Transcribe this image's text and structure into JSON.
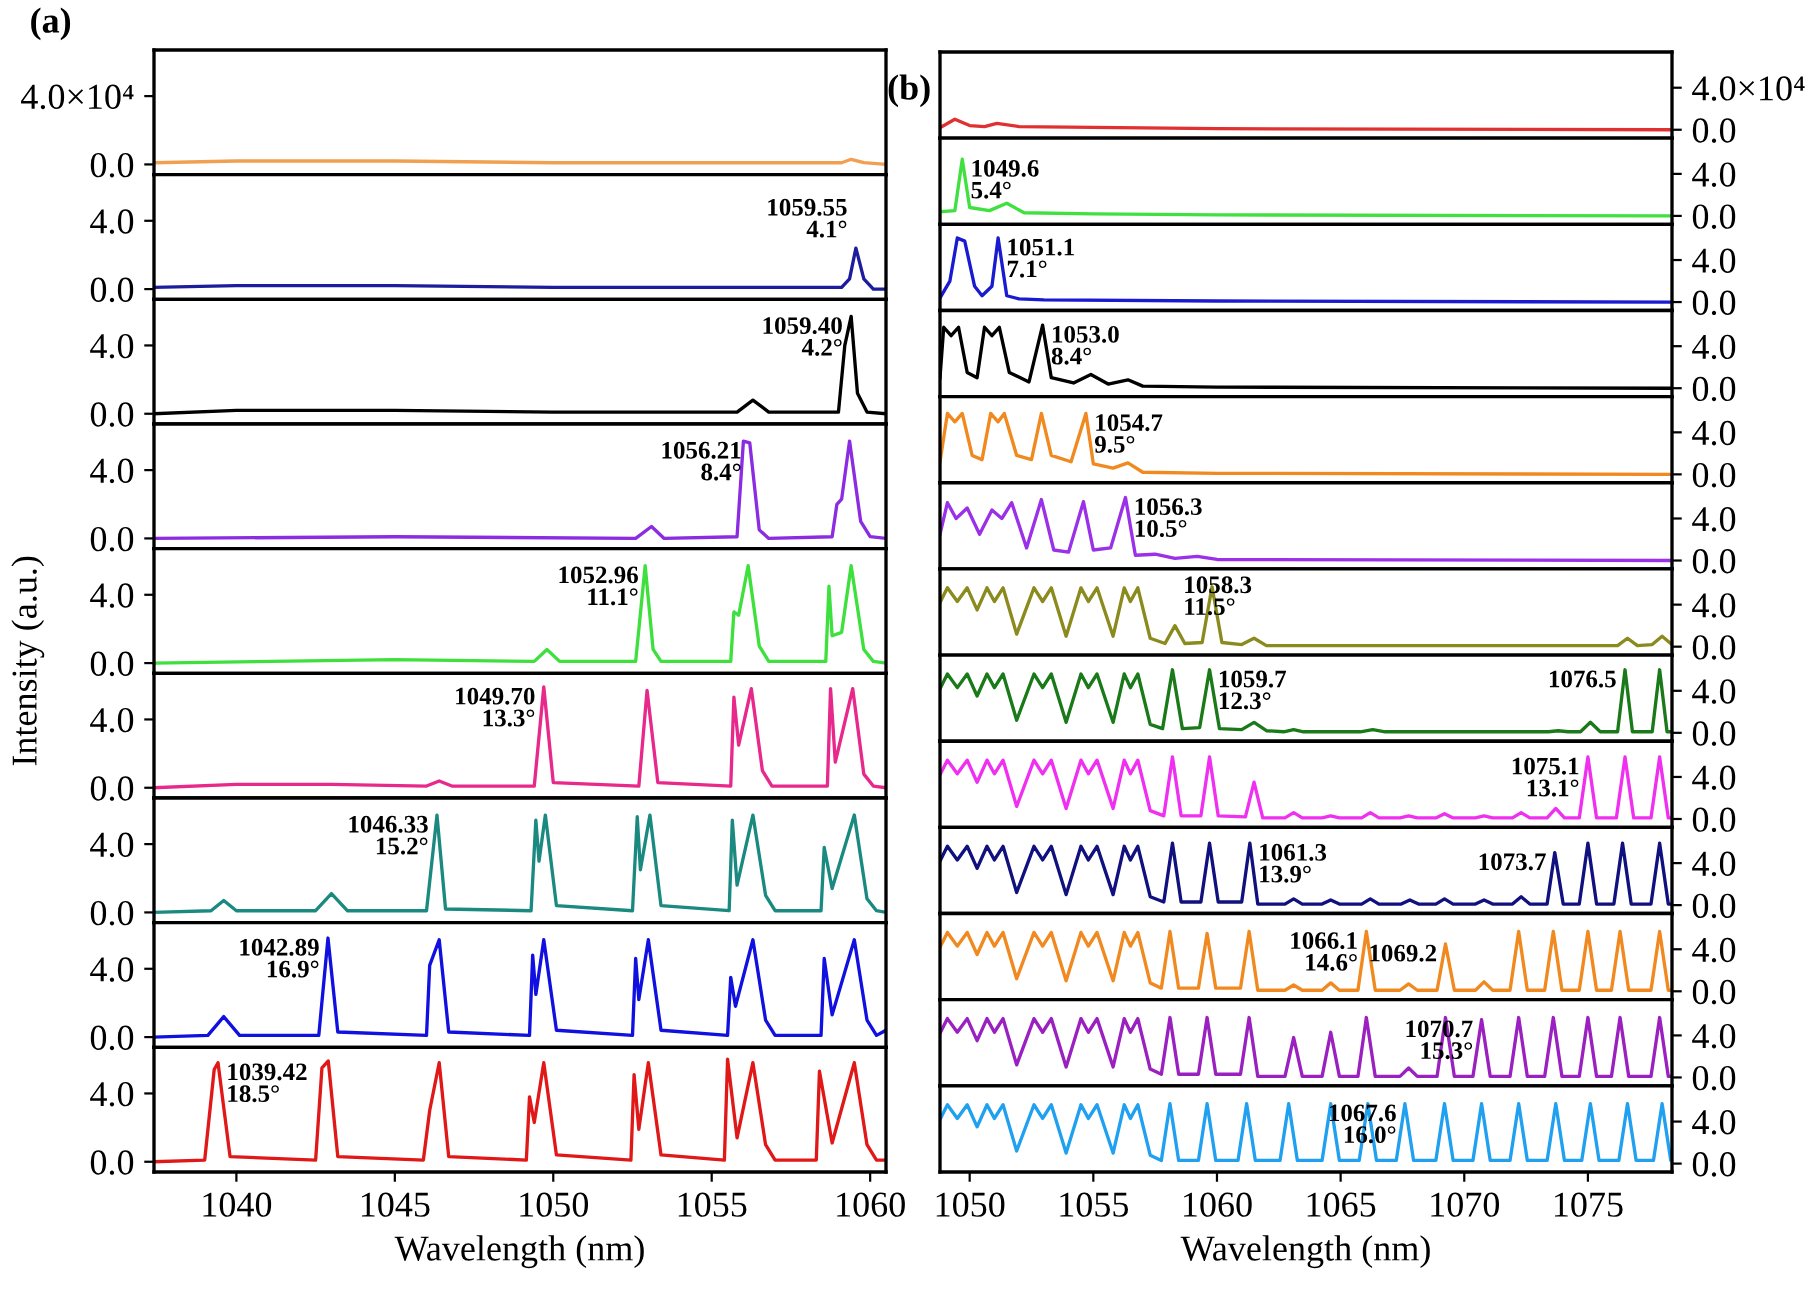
{
  "chart_data": [
    {
      "type": "line",
      "title": "(a)",
      "series": [
        {
          "color": "#f0a050",
          "x": [
            1037.4,
            1040,
            1045,
            1050,
            1055,
            1059.1,
            1059.4,
            1059.8,
            1060.5
          ],
          "values": [
            1000,
            2000,
            2000,
            1000,
            1000,
            1000,
            3000,
            1000,
            0
          ]
        }
      ],
      "xlim": [
        1037.4,
        1060.5
      ],
      "ylim": [
        -6000,
        67000
      ],
      "yticks": [
        {
          "value": 0,
          "label": "0.0"
        },
        {
          "value": 40000,
          "label": "4.0×10⁴"
        }
      ],
      "tick_labels": "y"
    },
    {
      "type": "line",
      "series": [
        {
          "color": "#1c1c9c",
          "x": [
            1037.4,
            1040,
            1045,
            1050,
            1055,
            1059.1,
            1059.35,
            1059.55,
            1059.8,
            1060.1,
            1060.5
          ],
          "values": [
            0.1,
            0.2,
            0.2,
            0.1,
            0.1,
            0.1,
            0.6,
            2.4,
            0.6,
            0.0,
            0.0
          ]
        }
      ],
      "xlim": [
        1037.4,
        1060.5
      ],
      "ylim": [
        -0.6,
        6.7
      ],
      "yticks": [
        {
          "value": 0,
          "label": "0.0"
        },
        {
          "value": 4,
          "label": "4.0"
        }
      ],
      "tick_labels": "y",
      "annotations": [
        {
          "text": "1059.55\n4.1°",
          "x": 1059.55,
          "y": 2.4
        }
      ]
    },
    {
      "type": "line",
      "series": [
        {
          "color": "#000000",
          "x": [
            1037.4,
            1040,
            1045,
            1050,
            1055.8,
            1056.3,
            1056.8,
            1059.0,
            1059.2,
            1059.4,
            1059.6,
            1059.9,
            1060.5
          ],
          "values": [
            0.0,
            0.2,
            0.2,
            0.1,
            0.1,
            0.8,
            0.1,
            0.1,
            4.0,
            5.7,
            1.2,
            0.1,
            0.0
          ]
        }
      ],
      "xlim": [
        1037.4,
        1060.5
      ],
      "ylim": [
        -0.6,
        6.7
      ],
      "yticks": [
        {
          "value": 0,
          "label": "0.0"
        },
        {
          "value": 4,
          "label": "4.0"
        }
      ],
      "tick_labels": "y",
      "annotations": [
        {
          "text": "1059.40\n4.2°",
          "x": 1059.4,
          "y": 5.7
        }
      ]
    },
    {
      "type": "line",
      "series": [
        {
          "color": "#8b2be2",
          "x": [
            1037.4,
            1045,
            1052.6,
            1053.1,
            1053.5,
            1055.8,
            1056.0,
            1056.2,
            1056.5,
            1056.8,
            1058.8,
            1058.95,
            1059.1,
            1059.35,
            1059.7,
            1060.0,
            1060.5
          ],
          "values": [
            0.0,
            0.1,
            0.0,
            0.7,
            0.0,
            0.1,
            5.7,
            5.6,
            0.5,
            0.0,
            0.1,
            2.0,
            2.3,
            5.7,
            1.0,
            0.1,
            0.0
          ]
        }
      ],
      "xlim": [
        1037.4,
        1060.5
      ],
      "ylim": [
        -0.6,
        6.7
      ],
      "yticks": [
        {
          "value": 0,
          "label": "0.0"
        },
        {
          "value": 4,
          "label": "4.0"
        }
      ],
      "tick_labels": "y",
      "annotations": [
        {
          "text": "1056.21\n8.4°",
          "x": 1056.21,
          "y": 5.7
        }
      ]
    },
    {
      "type": "line",
      "ylabel": "Intensity (a.u.)",
      "series": [
        {
          "color": "#3ee03e",
          "x": [
            1037.4,
            1045,
            1049.4,
            1049.8,
            1050.2,
            1052.6,
            1052.9,
            1053.15,
            1053.4,
            1055.6,
            1055.7,
            1055.85,
            1056.15,
            1056.5,
            1056.8,
            1058.6,
            1058.7,
            1058.8,
            1059.1,
            1059.4,
            1059.8,
            1060.1,
            1060.5
          ],
          "values": [
            0.0,
            0.2,
            0.1,
            0.8,
            0.1,
            0.1,
            5.7,
            0.8,
            0.1,
            0.1,
            3.0,
            2.8,
            5.7,
            1.0,
            0.1,
            0.1,
            4.5,
            1.6,
            1.8,
            5.7,
            0.8,
            0.1,
            0.0
          ]
        }
      ],
      "xlim": [
        1037.4,
        1060.5
      ],
      "ylim": [
        -0.6,
        6.7
      ],
      "yticks": [
        {
          "value": 0,
          "label": "0.0"
        },
        {
          "value": 4,
          "label": "4.0"
        }
      ],
      "tick_labels": "y",
      "annotations": [
        {
          "text": "1052.96\n11.1°",
          "x": 1052.96,
          "y": 5.7
        }
      ]
    },
    {
      "type": "line",
      "series": [
        {
          "color": "#e8288a",
          "x": [
            1037.4,
            1040,
            1043,
            1046.0,
            1046.4,
            1046.8,
            1049.4,
            1049.7,
            1050.0,
            1052.7,
            1052.96,
            1053.3,
            1055.6,
            1055.7,
            1055.85,
            1056.25,
            1056.6,
            1056.9,
            1058.65,
            1058.75,
            1058.9,
            1059.45,
            1059.8,
            1060.1,
            1060.5
          ],
          "values": [
            0.0,
            0.2,
            0.2,
            0.1,
            0.4,
            0.1,
            0.1,
            5.9,
            0.3,
            0.1,
            5.7,
            0.3,
            0.1,
            5.3,
            2.5,
            5.8,
            1.0,
            0.1,
            0.1,
            5.8,
            1.5,
            5.8,
            0.8,
            0.1,
            0.0
          ]
        }
      ],
      "xlim": [
        1037.4,
        1060.5
      ],
      "ylim": [
        -0.6,
        6.7
      ],
      "yticks": [
        {
          "value": 0,
          "label": "0.0"
        },
        {
          "value": 4,
          "label": "4.0"
        }
      ],
      "tick_labels": "y",
      "annotations": [
        {
          "text": "1049.70\n13.3°",
          "x": 1049.7,
          "y": 5.9
        }
      ]
    },
    {
      "type": "line",
      "series": [
        {
          "color": "#1a8a80",
          "x": [
            1037.4,
            1039.2,
            1039.6,
            1040.0,
            1042.5,
            1043.0,
            1043.5,
            1046.0,
            1046.33,
            1046.6,
            1049.3,
            1049.45,
            1049.55,
            1049.75,
            1050.1,
            1052.5,
            1052.65,
            1052.75,
            1053.05,
            1053.4,
            1055.55,
            1055.65,
            1055.8,
            1056.3,
            1056.7,
            1057.0,
            1058.45,
            1058.55,
            1058.8,
            1059.5,
            1059.9,
            1060.2,
            1060.5
          ],
          "values": [
            0.0,
            0.1,
            0.7,
            0.1,
            0.1,
            1.1,
            0.1,
            0.1,
            5.7,
            0.2,
            0.1,
            5.4,
            3.0,
            5.7,
            0.4,
            0.1,
            5.6,
            2.5,
            5.7,
            0.4,
            0.1,
            5.4,
            1.6,
            5.7,
            1.0,
            0.1,
            0.1,
            3.8,
            1.4,
            5.7,
            0.8,
            0.1,
            0.0
          ]
        }
      ],
      "xlim": [
        1037.4,
        1060.5
      ],
      "ylim": [
        -0.6,
        6.7
      ],
      "yticks": [
        {
          "value": 0,
          "label": "0.0"
        },
        {
          "value": 4,
          "label": "4.0"
        }
      ],
      "tick_labels": "y",
      "annotations": [
        {
          "text": "1046.33\n15.2°",
          "x": 1046.33,
          "y": 5.7
        }
      ]
    },
    {
      "type": "line",
      "series": [
        {
          "color": "#1010e0",
          "x": [
            1037.4,
            1039.1,
            1039.6,
            1040.1,
            1042.6,
            1042.89,
            1043.2,
            1046.0,
            1046.1,
            1046.4,
            1046.7,
            1049.25,
            1049.35,
            1049.45,
            1049.7,
            1050.1,
            1052.5,
            1052.6,
            1052.7,
            1053.0,
            1053.4,
            1055.5,
            1055.6,
            1055.75,
            1056.3,
            1056.7,
            1057.0,
            1058.45,
            1058.55,
            1058.8,
            1059.5,
            1059.9,
            1060.2,
            1060.5
          ],
          "values": [
            0.0,
            0.1,
            1.2,
            0.1,
            0.1,
            5.8,
            0.3,
            0.1,
            4.2,
            5.7,
            0.3,
            0.1,
            4.8,
            2.5,
            5.7,
            0.4,
            0.1,
            4.6,
            2.2,
            5.7,
            0.4,
            0.1,
            3.5,
            1.8,
            5.7,
            1.0,
            0.1,
            0.1,
            4.6,
            1.3,
            5.7,
            1.0,
            0.1,
            0.4
          ]
        }
      ],
      "xlim": [
        1037.4,
        1060.5
      ],
      "ylim": [
        -0.6,
        6.7
      ],
      "yticks": [
        {
          "value": 0,
          "label": "0.0"
        },
        {
          "value": 4,
          "label": "4.0"
        }
      ],
      "tick_labels": "y",
      "annotations": [
        {
          "text": "1042.89\n16.9°",
          "x": 1042.89,
          "y": 5.8
        }
      ]
    },
    {
      "type": "line",
      "xlabel": "Wavelength (nm)",
      "series": [
        {
          "color": "#e01818",
          "x": [
            1037.4,
            1039.0,
            1039.3,
            1039.42,
            1039.8,
            1042.5,
            1042.7,
            1042.9,
            1043.2,
            1045.9,
            1046.1,
            1046.4,
            1046.7,
            1049.15,
            1049.25,
            1049.4,
            1049.7,
            1050.1,
            1052.45,
            1052.55,
            1052.7,
            1053.0,
            1053.4,
            1055.4,
            1055.5,
            1055.8,
            1056.3,
            1056.7,
            1057.0,
            1058.3,
            1058.4,
            1058.8,
            1059.5,
            1059.9,
            1060.2,
            1060.5
          ],
          "values": [
            0.0,
            0.1,
            5.4,
            5.8,
            0.3,
            0.1,
            5.5,
            5.9,
            0.3,
            0.1,
            3.0,
            5.8,
            0.3,
            0.1,
            3.8,
            2.3,
            5.8,
            0.4,
            0.1,
            5.1,
            1.9,
            5.8,
            0.4,
            0.1,
            6.0,
            1.4,
            5.8,
            1.0,
            0.1,
            0.1,
            5.3,
            1.1,
            5.8,
            1.0,
            0.1,
            0.1
          ]
        }
      ],
      "xlim": [
        1037.4,
        1060.5
      ],
      "xticks": [
        1040,
        1045,
        1050,
        1055,
        1060
      ],
      "ylim": [
        -0.6,
        6.7
      ],
      "yticks": [
        {
          "value": 0,
          "label": "0.0"
        },
        {
          "value": 4,
          "label": "4.0"
        }
      ],
      "annotations": [
        {
          "text": "1039.42\n18.5°",
          "x": 1039.42,
          "y": 5.8
        }
      ]
    },
    {
      "type": "line",
      "title": "(b)",
      "series": [
        {
          "color": "#e03030",
          "x": [
            1048.8,
            1049.4,
            1050.0,
            1050.6,
            1051.1,
            1052.0,
            1056,
            1060,
            1078.4
          ],
          "values": [
            2000,
            10000,
            4000,
            3000,
            6000,
            3000,
            2000,
            1000,
            0
          ]
        }
      ],
      "xlim": [
        1048.8,
        1078.4
      ],
      "ylim": [
        -8000,
        74000
      ],
      "yticks": [
        {
          "value": 0,
          "label": "0.0"
        },
        {
          "value": 40000,
          "label": "4.0×10⁴"
        }
      ],
      "tick_labels": "y"
    },
    {
      "type": "line",
      "series": [
        {
          "color": "#40e040",
          "x": [
            1048.8,
            1049.4,
            1049.7,
            1050.0,
            1050.8,
            1051.5,
            1052.2,
            1055,
            1060,
            1078.4
          ],
          "values": [
            0.4,
            0.5,
            5.4,
            0.8,
            0.5,
            1.2,
            0.3,
            0.2,
            0.1,
            0.0
          ]
        }
      ],
      "xlim": [
        1048.8,
        1078.4
      ],
      "ylim": [
        -0.8,
        7.4
      ],
      "yticks": [
        {
          "value": 0,
          "label": "0.0"
        },
        {
          "value": 4,
          "label": "4.0"
        }
      ],
      "tick_labels": "y",
      "annotations": [
        {
          "text": "1049.6\n5.4°",
          "x": 1049.7,
          "y": 5.4
        }
      ]
    },
    {
      "type": "line",
      "series": [
        {
          "color": "#1a1ad0",
          "x": [
            1048.8,
            1049.2,
            1049.5,
            1049.8,
            1050.2,
            1050.5,
            1050.9,
            1051.15,
            1051.5,
            1052.0,
            1053,
            1060,
            1078.4
          ],
          "values": [
            0.4,
            2.0,
            6.1,
            5.8,
            1.5,
            0.6,
            1.5,
            6.1,
            0.6,
            0.3,
            0.2,
            0.1,
            0.0
          ]
        }
      ],
      "xlim": [
        1048.8,
        1078.4
      ],
      "ylim": [
        -0.8,
        7.4
      ],
      "yticks": [
        {
          "value": 0,
          "label": "0.0"
        },
        {
          "value": 4,
          "label": "4.0"
        }
      ],
      "tick_labels": "y",
      "annotations": [
        {
          "text": "1051.1\n7.1°",
          "x": 1051.15,
          "y": 6.1
        }
      ]
    },
    {
      "type": "line",
      "series": [
        {
          "color": "#000000",
          "x": [
            1048.8,
            1048.95,
            1049.25,
            1049.55,
            1049.9,
            1050.3,
            1050.6,
            1050.9,
            1051.2,
            1051.6,
            1052.4,
            1052.95,
            1053.3,
            1054.2,
            1054.9,
            1055.6,
            1056.4,
            1057,
            1060,
            1078.4
          ],
          "values": [
            1.0,
            5.8,
            5.0,
            5.8,
            1.5,
            1.0,
            5.8,
            5.0,
            5.8,
            1.5,
            0.6,
            6.0,
            1.0,
            0.5,
            1.3,
            0.4,
            0.8,
            0.2,
            0.1,
            0.0
          ]
        }
      ],
      "xlim": [
        1048.8,
        1078.4
      ],
      "ylim": [
        -0.8,
        7.4
      ],
      "yticks": [
        {
          "value": 0,
          "label": "0.0"
        },
        {
          "value": 4,
          "label": "4.0"
        }
      ],
      "tick_labels": "y",
      "annotations": [
        {
          "text": "1053.0\n8.4°",
          "x": 1052.95,
          "y": 6.0
        }
      ]
    },
    {
      "type": "line",
      "series": [
        {
          "color": "#f08a20",
          "x": [
            1048.8,
            1049.1,
            1049.4,
            1049.7,
            1050.1,
            1050.5,
            1050.85,
            1051.15,
            1051.4,
            1051.9,
            1052.5,
            1052.9,
            1053.3,
            1054.1,
            1054.7,
            1055.0,
            1055.8,
            1056.4,
            1057.0,
            1060,
            1078.4
          ],
          "values": [
            1.2,
            5.8,
            5.0,
            5.8,
            1.8,
            1.4,
            5.8,
            5.0,
            5.8,
            1.8,
            1.4,
            5.8,
            1.8,
            1.2,
            5.8,
            1.0,
            0.6,
            1.1,
            0.2,
            0.1,
            0.0
          ]
        }
      ],
      "xlim": [
        1048.8,
        1078.4
      ],
      "ylim": [
        -0.8,
        7.4
      ],
      "yticks": [
        {
          "value": 0,
          "label": "0.0"
        },
        {
          "value": 4,
          "label": "4.0"
        }
      ],
      "tick_labels": "y",
      "annotations": [
        {
          "text": "1054.7\n9.5°",
          "x": 1054.7,
          "y": 5.8
        }
      ]
    },
    {
      "type": "line",
      "series": [
        {
          "color": "#9a30e8",
          "x": [
            1048.8,
            1049.1,
            1049.45,
            1049.9,
            1050.4,
            1050.9,
            1051.3,
            1051.7,
            1052.3,
            1052.9,
            1053.4,
            1054.0,
            1054.6,
            1055.0,
            1055.7,
            1056.3,
            1056.7,
            1057.5,
            1058.3,
            1059.2,
            1060,
            1078.4
          ],
          "values": [
            2.5,
            5.5,
            4.0,
            5.0,
            2.5,
            4.8,
            4.0,
            5.5,
            1.2,
            5.8,
            1.0,
            0.8,
            5.6,
            1.0,
            1.2,
            6.0,
            0.5,
            0.6,
            0.2,
            0.4,
            0.1,
            0.0
          ]
        }
      ],
      "xlim": [
        1048.8,
        1078.4
      ],
      "ylim": [
        -0.8,
        7.4
      ],
      "yticks": [
        {
          "value": 0,
          "label": "0.0"
        },
        {
          "value": 4,
          "label": "4.0"
        }
      ],
      "tick_labels": "y",
      "annotations": [
        {
          "text": "1056.3\n10.5°",
          "x": 1056.3,
          "y": 6.0
        }
      ]
    },
    {
      "type": "line",
      "series": [
        {
          "color": "#8a8a1e",
          "x": [
            1048.8,
            1049.1,
            1049.5,
            1049.9,
            1050.3,
            1050.7,
            1051.0,
            1051.35,
            1051.9,
            1052.6,
            1052.95,
            1053.3,
            1053.9,
            1054.5,
            1054.8,
            1055.15,
            1055.8,
            1056.25,
            1056.5,
            1056.8,
            1057.3,
            1057.9,
            1058.3,
            1058.7,
            1059.4,
            1059.8,
            1060.2,
            1061.0,
            1061.5,
            1062.0,
            1064,
            1070,
            1076.2,
            1076.6,
            1077.0,
            1077.6,
            1078.0,
            1078.4
          ],
          "values": [
            4.2,
            5.6,
            4.3,
            5.6,
            3.5,
            5.6,
            4.3,
            5.6,
            1.2,
            5.6,
            4.3,
            5.6,
            1.0,
            5.6,
            4.3,
            5.6,
            1.0,
            5.6,
            4.3,
            5.6,
            0.8,
            0.3,
            2.0,
            0.3,
            0.4,
            5.7,
            0.4,
            0.2,
            0.8,
            0.1,
            0.1,
            0.1,
            0.1,
            0.8,
            0.1,
            0.2,
            1.0,
            0.2
          ]
        }
      ],
      "xlim": [
        1048.8,
        1078.4
      ],
      "ylim": [
        -0.8,
        7.4
      ],
      "yticks": [
        {
          "value": 0,
          "label": "0.0"
        },
        {
          "value": 4,
          "label": "4.0"
        }
      ],
      "tick_labels": "y",
      "annotations": [
        {
          "text": "1058.3\n11.5°",
          "x": 1058.3,
          "y": 2.0
        }
      ]
    },
    {
      "type": "line",
      "series": [
        {
          "color": "#1a7a1a",
          "x": [
            1048.8,
            1049.1,
            1049.5,
            1049.9,
            1050.3,
            1050.7,
            1051.0,
            1051.35,
            1051.9,
            1052.6,
            1052.95,
            1053.3,
            1053.9,
            1054.5,
            1054.8,
            1055.15,
            1055.8,
            1056.25,
            1056.5,
            1056.8,
            1057.3,
            1057.8,
            1058.2,
            1058.6,
            1059.3,
            1059.7,
            1060.1,
            1061.0,
            1061.5,
            1062.0,
            1062.7,
            1063.1,
            1063.5,
            1065.8,
            1066.3,
            1066.8,
            1073.4,
            1073.8,
            1074.2,
            1074.7,
            1075.1,
            1075.5,
            1076.2,
            1076.5,
            1076.8,
            1077.6,
            1077.9,
            1078.2,
            1078.4
          ],
          "values": [
            4.2,
            5.6,
            4.3,
            5.6,
            3.5,
            5.6,
            4.3,
            5.6,
            1.2,
            5.6,
            4.3,
            5.6,
            1.0,
            5.6,
            4.3,
            5.6,
            1.0,
            5.6,
            4.3,
            5.6,
            0.8,
            0.4,
            6.0,
            0.4,
            0.5,
            6.0,
            0.4,
            0.3,
            1.0,
            0.2,
            0.1,
            0.3,
            0.1,
            0.1,
            0.3,
            0.1,
            0.1,
            0.2,
            0.1,
            0.1,
            1.0,
            0.1,
            0.1,
            6.0,
            0.1,
            0.1,
            6.0,
            0.1,
            0.1
          ]
        }
      ],
      "xlim": [
        1048.8,
        1078.4
      ],
      "ylim": [
        -0.8,
        7.4
      ],
      "yticks": [
        {
          "value": 0,
          "label": "0.0"
        },
        {
          "value": 4,
          "label": "4.0"
        }
      ],
      "tick_labels": "y",
      "annotations": [
        {
          "text": "1059.7\n12.3°",
          "x": 1059.7,
          "y": 6.0
        },
        {
          "text": "1076.5",
          "x": 1076.5,
          "y": 6.0
        }
      ]
    },
    {
      "type": "line",
      "series": [
        {
          "color": "#f030f0",
          "x": [
            1048.8,
            1049.1,
            1049.5,
            1049.9,
            1050.3,
            1050.7,
            1051.0,
            1051.35,
            1051.9,
            1052.6,
            1052.95,
            1053.3,
            1053.9,
            1054.5,
            1054.8,
            1055.15,
            1055.8,
            1056.25,
            1056.5,
            1056.8,
            1057.3,
            1057.85,
            1058.2,
            1058.55,
            1059.35,
            1059.7,
            1060.05,
            1061.15,
            1061.5,
            1061.85,
            1062.75,
            1063.1,
            1063.45,
            1064.25,
            1064.6,
            1064.95,
            1065.85,
            1066.2,
            1066.55,
            1067.4,
            1067.75,
            1068.1,
            1068.85,
            1069.2,
            1069.55,
            1070.45,
            1070.8,
            1071.15,
            1071.95,
            1072.3,
            1072.65,
            1073.35,
            1073.7,
            1074.05,
            1074.65,
            1075.0,
            1075.35,
            1076.15,
            1076.5,
            1076.85,
            1077.55,
            1077.9,
            1078.25,
            1078.4
          ],
          "values": [
            4.2,
            5.6,
            4.3,
            5.6,
            3.5,
            5.6,
            4.3,
            5.6,
            1.2,
            5.6,
            4.3,
            5.6,
            1.0,
            5.6,
            4.3,
            5.6,
            1.0,
            5.6,
            4.3,
            5.6,
            0.8,
            0.3,
            5.9,
            0.3,
            0.3,
            5.9,
            0.3,
            0.2,
            3.5,
            0.1,
            0.1,
            0.6,
            0.1,
            0.1,
            0.3,
            0.1,
            0.1,
            0.6,
            0.1,
            0.1,
            0.3,
            0.1,
            0.1,
            0.5,
            0.1,
            0.1,
            0.3,
            0.1,
            0.1,
            0.6,
            0.1,
            0.1,
            1.0,
            0.1,
            0.1,
            5.9,
            0.1,
            0.1,
            5.9,
            0.1,
            0.1,
            5.9,
            0.1,
            0.1
          ]
        }
      ],
      "xlim": [
        1048.8,
        1078.4
      ],
      "ylim": [
        -0.8,
        7.4
      ],
      "yticks": [
        {
          "value": 0,
          "label": "0.0"
        },
        {
          "value": 4,
          "label": "4.0"
        }
      ],
      "tick_labels": "y",
      "annotations": [
        {
          "text": "1075.1\n13.1°",
          "x": 1075.0,
          "y": 5.9
        }
      ]
    },
    {
      "type": "line",
      "series": [
        {
          "color": "#10107e",
          "x": [
            1048.8,
            1049.1,
            1049.5,
            1049.9,
            1050.3,
            1050.7,
            1051.0,
            1051.35,
            1051.9,
            1052.6,
            1052.95,
            1053.3,
            1053.9,
            1054.5,
            1054.8,
            1055.15,
            1055.8,
            1056.25,
            1056.5,
            1056.8,
            1057.3,
            1057.85,
            1058.2,
            1058.55,
            1059.35,
            1059.7,
            1060.05,
            1061.0,
            1061.33,
            1061.65,
            1062.75,
            1063.1,
            1063.45,
            1064.25,
            1064.6,
            1064.95,
            1065.85,
            1066.2,
            1066.55,
            1067.45,
            1067.8,
            1068.15,
            1068.85,
            1069.2,
            1069.55,
            1070.45,
            1070.8,
            1071.15,
            1071.95,
            1072.3,
            1072.65,
            1073.35,
            1073.66,
            1074.0,
            1074.65,
            1075.0,
            1075.35,
            1076.05,
            1076.4,
            1076.75,
            1077.55,
            1077.9,
            1078.25,
            1078.4
          ],
          "values": [
            4.2,
            5.6,
            4.3,
            5.6,
            3.5,
            5.6,
            4.3,
            5.6,
            1.2,
            5.6,
            4.3,
            5.6,
            1.0,
            5.6,
            4.3,
            5.6,
            1.0,
            5.6,
            4.3,
            5.6,
            0.8,
            0.3,
            5.9,
            0.3,
            0.3,
            5.9,
            0.3,
            0.3,
            5.9,
            0.1,
            0.1,
            0.6,
            0.1,
            0.1,
            0.5,
            0.1,
            0.1,
            0.6,
            0.1,
            0.1,
            0.5,
            0.1,
            0.1,
            0.6,
            0.1,
            0.1,
            0.5,
            0.1,
            0.1,
            0.8,
            0.1,
            0.1,
            5.0,
            0.1,
            0.1,
            5.9,
            0.1,
            0.1,
            5.9,
            0.1,
            0.1,
            5.9,
            0.1,
            0.1
          ]
        }
      ],
      "xlim": [
        1048.8,
        1078.4
      ],
      "ylim": [
        -0.8,
        7.4
      ],
      "yticks": [
        {
          "value": 0,
          "label": "0.0"
        },
        {
          "value": 4,
          "label": "4.0"
        }
      ],
      "tick_labels": "y",
      "annotations": [
        {
          "text": "1061.3\n13.9°",
          "x": 1061.33,
          "y": 5.9
        },
        {
          "text": "1073.7",
          "x": 1073.66,
          "y": 5.0
        }
      ]
    },
    {
      "type": "line",
      "series": [
        {
          "color": "#f08a20",
          "x": [
            1048.8,
            1049.1,
            1049.5,
            1049.9,
            1050.3,
            1050.7,
            1051.0,
            1051.35,
            1051.9,
            1052.6,
            1052.95,
            1053.3,
            1053.9,
            1054.5,
            1054.8,
            1055.15,
            1055.8,
            1056.25,
            1056.5,
            1056.8,
            1057.3,
            1057.75,
            1058.1,
            1058.45,
            1059.25,
            1059.6,
            1059.95,
            1060.95,
            1061.3,
            1061.65,
            1062.75,
            1063.1,
            1063.45,
            1064.25,
            1064.6,
            1064.95,
            1065.7,
            1066.04,
            1066.4,
            1067.4,
            1067.75,
            1068.1,
            1068.9,
            1069.24,
            1069.6,
            1070.45,
            1070.8,
            1071.15,
            1071.85,
            1072.2,
            1072.55,
            1073.25,
            1073.6,
            1073.95,
            1074.65,
            1075.0,
            1075.35,
            1075.95,
            1076.3,
            1076.65,
            1077.55,
            1077.9,
            1078.25,
            1078.4
          ],
          "values": [
            4.2,
            5.6,
            4.3,
            5.6,
            3.5,
            5.6,
            4.3,
            5.6,
            1.2,
            5.6,
            4.3,
            5.6,
            1.0,
            5.6,
            4.3,
            5.6,
            1.0,
            5.6,
            4.3,
            5.6,
            0.8,
            0.3,
            5.7,
            0.3,
            0.3,
            5.5,
            0.3,
            0.3,
            5.7,
            0.1,
            0.1,
            0.6,
            0.1,
            0.1,
            0.8,
            0.1,
            0.1,
            5.7,
            0.1,
            0.1,
            0.7,
            0.1,
            0.1,
            4.5,
            0.1,
            0.1,
            0.9,
            0.1,
            0.1,
            5.7,
            0.1,
            0.1,
            5.7,
            0.1,
            0.1,
            5.7,
            0.1,
            0.1,
            5.7,
            0.1,
            0.1,
            5.7,
            0.1,
            0.1
          ]
        }
      ],
      "xlim": [
        1048.8,
        1078.4
      ],
      "ylim": [
        -0.8,
        7.4
      ],
      "yticks": [
        {
          "value": 0,
          "label": "0.0"
        },
        {
          "value": 4,
          "label": "4.0"
        }
      ],
      "tick_labels": "y",
      "annotations": [
        {
          "text": "1066.1\n14.6°",
          "x": 1066.04,
          "y": 5.7
        },
        {
          "text": "1069.2",
          "x": 1069.24,
          "y": 4.5
        }
      ]
    },
    {
      "type": "line",
      "series": [
        {
          "color": "#9a20c0",
          "x": [
            1048.8,
            1049.1,
            1049.5,
            1049.9,
            1050.3,
            1050.7,
            1051.0,
            1051.35,
            1051.9,
            1052.6,
            1052.95,
            1053.3,
            1053.9,
            1054.5,
            1054.8,
            1055.15,
            1055.8,
            1056.25,
            1056.5,
            1056.8,
            1057.3,
            1057.75,
            1058.1,
            1058.45,
            1059.25,
            1059.6,
            1059.95,
            1060.95,
            1061.3,
            1061.65,
            1062.75,
            1063.1,
            1063.45,
            1064.25,
            1064.6,
            1064.95,
            1065.7,
            1066.04,
            1066.4,
            1067.4,
            1067.75,
            1068.1,
            1068.9,
            1069.24,
            1069.6,
            1070.35,
            1070.7,
            1071.05,
            1071.85,
            1072.2,
            1072.55,
            1073.25,
            1073.6,
            1073.95,
            1074.65,
            1075.0,
            1075.35,
            1075.95,
            1076.3,
            1076.65,
            1077.55,
            1077.9,
            1078.25,
            1078.4
          ],
          "values": [
            4.2,
            5.6,
            4.3,
            5.6,
            3.5,
            5.6,
            4.3,
            5.6,
            1.2,
            5.6,
            4.3,
            5.6,
            1.0,
            5.6,
            4.3,
            5.6,
            1.0,
            5.6,
            4.3,
            5.6,
            0.8,
            0.3,
            5.7,
            0.3,
            0.3,
            5.7,
            0.3,
            0.3,
            5.7,
            0.1,
            0.1,
            3.8,
            0.1,
            0.1,
            4.3,
            0.1,
            0.1,
            5.7,
            0.1,
            0.1,
            0.9,
            0.1,
            0.1,
            5.7,
            0.1,
            0.1,
            5.5,
            0.1,
            0.1,
            5.7,
            0.1,
            0.1,
            5.7,
            0.1,
            0.1,
            5.7,
            0.1,
            0.1,
            5.7,
            0.1,
            0.1,
            5.7,
            0.1,
            0.1
          ]
        }
      ],
      "xlim": [
        1048.8,
        1078.4
      ],
      "ylim": [
        -0.8,
        7.4
      ],
      "yticks": [
        {
          "value": 0,
          "label": "0.0"
        },
        {
          "value": 4,
          "label": "4.0"
        }
      ],
      "tick_labels": "y",
      "annotations": [
        {
          "text": "1070.7\n15.3°",
          "x": 1070.7,
          "y": 5.5
        }
      ]
    },
    {
      "type": "line",
      "xlabel": "Wavelength (nm)",
      "series": [
        {
          "color": "#20a0f0",
          "x": [
            1048.8,
            1049.1,
            1049.5,
            1049.9,
            1050.3,
            1050.7,
            1051.0,
            1051.35,
            1051.9,
            1052.6,
            1052.95,
            1053.3,
            1053.9,
            1054.5,
            1054.8,
            1055.15,
            1055.8,
            1056.25,
            1056.5,
            1056.8,
            1057.3,
            1057.75,
            1058.1,
            1058.45,
            1059.25,
            1059.6,
            1059.95,
            1060.85,
            1061.2,
            1061.55,
            1062.55,
            1062.9,
            1063.25,
            1064.25,
            1064.6,
            1064.95,
            1065.75,
            1066.1,
            1066.45,
            1067.25,
            1067.6,
            1067.95,
            1068.85,
            1069.2,
            1069.55,
            1070.35,
            1070.7,
            1071.05,
            1071.85,
            1072.2,
            1072.55,
            1073.35,
            1073.7,
            1074.05,
            1074.75,
            1075.1,
            1075.45,
            1076.25,
            1076.6,
            1076.95,
            1077.65,
            1078.0,
            1078.35,
            1078.4
          ],
          "values": [
            4.2,
            5.6,
            4.3,
            5.6,
            3.5,
            5.6,
            4.3,
            5.6,
            1.2,
            5.6,
            4.3,
            5.6,
            1.0,
            5.6,
            4.3,
            5.6,
            1.0,
            5.6,
            4.3,
            5.6,
            0.8,
            0.3,
            5.7,
            0.3,
            0.3,
            5.7,
            0.3,
            0.3,
            5.7,
            0.3,
            0.3,
            5.7,
            0.3,
            0.3,
            5.7,
            0.3,
            0.3,
            5.7,
            0.3,
            0.3,
            5.7,
            0.3,
            0.3,
            5.7,
            0.3,
            0.3,
            5.7,
            0.3,
            0.3,
            5.7,
            0.3,
            0.3,
            5.7,
            0.3,
            0.3,
            5.7,
            0.3,
            0.3,
            5.7,
            0.3,
            0.3,
            5.7,
            0.3,
            0.3
          ]
        }
      ],
      "xlim": [
        1048.8,
        1078.4
      ],
      "xticks": [
        1050,
        1055,
        1060,
        1065,
        1070,
        1075
      ],
      "ylim": [
        -0.8,
        7.4
      ],
      "yticks": [
        {
          "value": 0,
          "label": "0.0"
        },
        {
          "value": 4,
          "label": "4.0"
        }
      ],
      "annotations": [
        {
          "text": "1067.6\n16.0°",
          "x": 1067.6,
          "y": 5.7
        }
      ]
    }
  ]
}
